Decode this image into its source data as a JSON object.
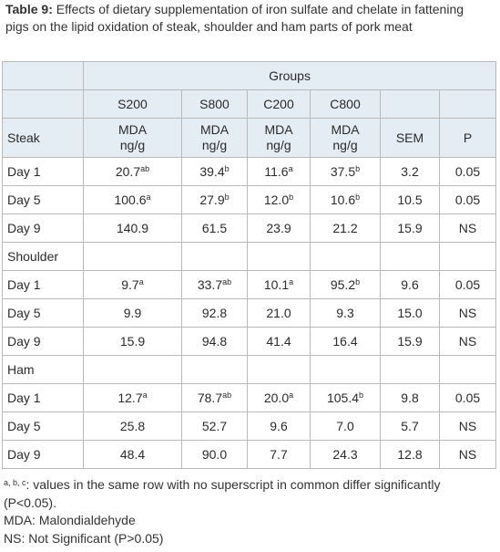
{
  "caption": {
    "label": "Table 9:",
    "text": " Effects of dietary supplementation of iron sulfate and chelate in fattening pigs on the lipid oxidation of steak, shoulder and ham parts of pork meat"
  },
  "table": {
    "groups_header": "Groups",
    "columns": [
      "S200",
      "S800",
      "C200",
      "C800"
    ],
    "sub_header": {
      "row_label": "Steak",
      "unit": [
        "MDA",
        "ng/g"
      ],
      "sem": "SEM",
      "p": "P"
    },
    "sections": [
      {
        "name": "Steak",
        "rows": [
          {
            "label": "Day 1",
            "cells": [
              {
                "v": "20.7",
                "s": "ab"
              },
              {
                "v": "39.4",
                "s": "b"
              },
              {
                "v": "11.6",
                "s": "a"
              },
              {
                "v": "37.5",
                "s": "b"
              }
            ],
            "sem": "3.2",
            "p": "0.05"
          },
          {
            "label": "Day 5",
            "cells": [
              {
                "v": "100.6",
                "s": "a"
              },
              {
                "v": "27.9",
                "s": "b"
              },
              {
                "v": "12.0",
                "s": "b"
              },
              {
                "v": "10.6",
                "s": "b"
              }
            ],
            "sem": "10.5",
            "p": "0.05"
          },
          {
            "label": "Day 9",
            "cells": [
              {
                "v": "140.9",
                "s": ""
              },
              {
                "v": "61.5",
                "s": ""
              },
              {
                "v": "23.9",
                "s": ""
              },
              {
                "v": "21.2",
                "s": ""
              }
            ],
            "sem": "15.9",
            "p": "NS"
          }
        ]
      },
      {
        "name": "Shoulder",
        "rows": [
          {
            "label": "Day 1",
            "cells": [
              {
                "v": "9.7",
                "s": "a"
              },
              {
                "v": "33.7",
                "s": "ab"
              },
              {
                "v": "10.1",
                "s": "a"
              },
              {
                "v": "95.2",
                "s": "b"
              }
            ],
            "sem": "9.6",
            "p": "0.05"
          },
          {
            "label": "Day 5",
            "cells": [
              {
                "v": "9.9",
                "s": ""
              },
              {
                "v": "92.8",
                "s": ""
              },
              {
                "v": "21.0",
                "s": ""
              },
              {
                "v": "9.3",
                "s": ""
              }
            ],
            "sem": "15.0",
            "p": "NS"
          },
          {
            "label": "Day 9",
            "cells": [
              {
                "v": "15.9",
                "s": ""
              },
              {
                "v": "94.8",
                "s": ""
              },
              {
                "v": "41.4",
                "s": ""
              },
              {
                "v": "16.4",
                "s": ""
              }
            ],
            "sem": "15.9",
            "p": "NS"
          }
        ]
      },
      {
        "name": "Ham",
        "rows": [
          {
            "label": "Day 1",
            "cells": [
              {
                "v": "12.7",
                "s": "a"
              },
              {
                "v": "78.7",
                "s": "ab"
              },
              {
                "v": "20.0",
                "s": "a"
              },
              {
                "v": "105.4",
                "s": "b"
              }
            ],
            "sem": "9.8",
            "p": "0.05"
          },
          {
            "label": "Day 5",
            "cells": [
              {
                "v": "25.8",
                "s": ""
              },
              {
                "v": "52.7",
                "s": ""
              },
              {
                "v": "9.6",
                "s": ""
              },
              {
                "v": "7.0",
                "s": ""
              }
            ],
            "sem": "5.7",
            "p": "NS"
          },
          {
            "label": "Day 9",
            "cells": [
              {
                "v": "48.4",
                "s": ""
              },
              {
                "v": "90.0",
                "s": ""
              },
              {
                "v": "7.7",
                "s": ""
              },
              {
                "v": "24.3",
                "s": ""
              }
            ],
            "sem": "12.8",
            "p": "NS"
          }
        ]
      }
    ]
  },
  "footnotes": {
    "superscripts": "a, b, c",
    "line1": ": values in the same row with no superscript in common differ significantly (P<0.05).",
    "line2": "MDA: Malondialdehyde",
    "line3": "NS: Not Significant (P>0.05)"
  },
  "colors": {
    "header_shading": "#e3edf3",
    "grid": "#b9b9b9",
    "text": "#2b2b2b"
  }
}
